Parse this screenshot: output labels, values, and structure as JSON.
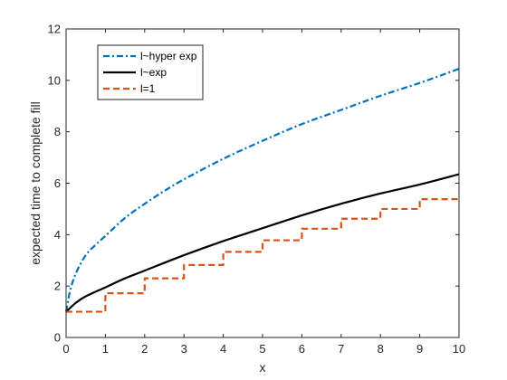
{
  "chart_data": {
    "type": "line",
    "xlabel": "x",
    "ylabel": "expected time to complete fill",
    "xlim": [
      0,
      10
    ],
    "ylim": [
      0,
      12
    ],
    "xticks": [
      0,
      1,
      2,
      3,
      4,
      5,
      6,
      7,
      8,
      9,
      10
    ],
    "yticks": [
      0,
      2,
      4,
      6,
      8,
      10,
      12
    ],
    "grid": false,
    "legend_position": "top-left",
    "series": [
      {
        "name": "l~hyper exp",
        "color": "#0072BD",
        "style": "dash-dot",
        "x": [
          0,
          0.1,
          0.25,
          0.5,
          0.75,
          1,
          1.5,
          2,
          2.5,
          3,
          4,
          5,
          6,
          7,
          8,
          9,
          10
        ],
        "y": [
          1.0,
          1.8,
          2.5,
          3.2,
          3.6,
          3.95,
          4.65,
          5.2,
          5.7,
          6.15,
          6.95,
          7.65,
          8.3,
          8.85,
          9.4,
          9.9,
          10.45
        ]
      },
      {
        "name": "l~exp",
        "color": "#000000",
        "style": "solid",
        "x": [
          0,
          0.25,
          0.5,
          1,
          1.5,
          2,
          3,
          4,
          5,
          6,
          7,
          8,
          9,
          10
        ],
        "y": [
          1.0,
          1.35,
          1.6,
          1.95,
          2.3,
          2.6,
          3.2,
          3.75,
          4.25,
          4.75,
          5.2,
          5.6,
          5.95,
          6.35
        ]
      },
      {
        "name": "l=1",
        "color": "#D95319",
        "style": "dashed",
        "step": true,
        "x": [
          0,
          1,
          2,
          3,
          4,
          5,
          6,
          7,
          8,
          9,
          10
        ],
        "y": [
          1.0,
          1.72,
          2.3,
          2.82,
          3.33,
          3.78,
          4.23,
          4.62,
          5.0,
          5.38,
          5.38
        ]
      }
    ]
  }
}
